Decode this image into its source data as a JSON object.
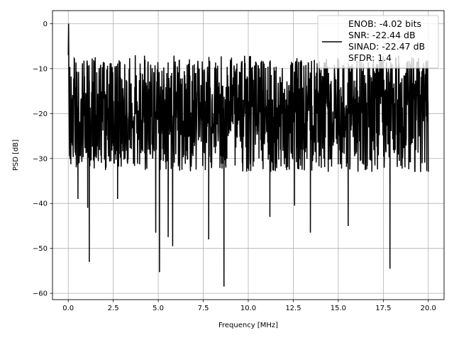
{
  "chart_data": {
    "type": "line",
    "title": "",
    "xlabel": "Frequency [MHz]",
    "ylabel": "PSD [dB]",
    "xlim": [
      -0.875,
      20.875
    ],
    "ylim": [
      -61.4,
      2.9
    ],
    "xticks": [
      0.0,
      2.5,
      5.0,
      7.5,
      10.0,
      12.5,
      15.0,
      17.5,
      20.0
    ],
    "xtick_labels": [
      "0.0",
      "2.5",
      "5.0",
      "7.5",
      "10.0",
      "12.5",
      "15.0",
      "17.5",
      "20.0"
    ],
    "yticks": [
      0,
      -10,
      -20,
      -30,
      -40,
      -50,
      -60
    ],
    "ytick_labels": [
      "0",
      "−10",
      "−20",
      "−30",
      "−40",
      "−50",
      "−60"
    ],
    "grid": true,
    "legend_position": "top-right",
    "legend_lines": [
      "ENOB: -4.02 bits",
      "SNR: -22.44 dB",
      "SINAD: -22.47 dB",
      "SFDR: 1.4"
    ],
    "series_color": "#000000",
    "series": [
      {
        "name": "ENOB: -4.02 bits\nSNR: -22.44 dB\nSINAD: -22.47 dB\nSFDR: 1.4",
        "x_range": [
          0.0,
          20.0
        ],
        "peak": {
          "x": 0.02,
          "y": 0.0
        },
        "baseline_start_level": -22,
        "baseline_end_level": -18,
        "upper_envelope_approx": -8,
        "lower_envelope_approx": -33,
        "notable_minima": [
          {
            "x": 1.17,
            "y": -53.0
          },
          {
            "x": 5.07,
            "y": -55.3
          },
          {
            "x": 8.65,
            "y": -58.5
          },
          {
            "x": 17.87,
            "y": -54.5
          },
          {
            "x": 4.86,
            "y": -46.5
          },
          {
            "x": 5.55,
            "y": -47.5
          },
          {
            "x": 5.8,
            "y": -49.5
          },
          {
            "x": 7.8,
            "y": -48.0
          },
          {
            "x": 13.45,
            "y": -46.5
          },
          {
            "x": 15.55,
            "y": -45.0
          },
          {
            "x": 11.2,
            "y": -43.0
          },
          {
            "x": 1.08,
            "y": -41.0
          },
          {
            "x": 0.54,
            "y": -39.0
          },
          {
            "x": 2.74,
            "y": -39.0
          },
          {
            "x": 12.57,
            "y": -40.5
          }
        ]
      }
    ]
  }
}
